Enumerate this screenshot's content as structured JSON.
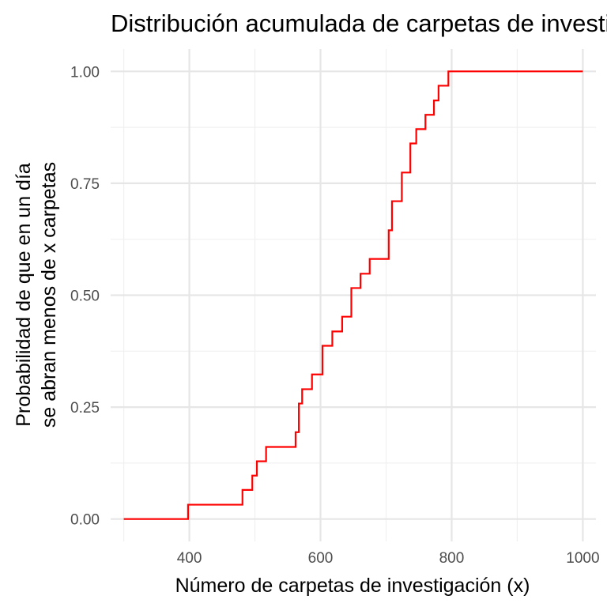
{
  "chart_data": {
    "type": "line",
    "subtype": "step",
    "title": "Distribución acumulada de carpetas de investigación",
    "xlabel": "Número de carpetas de investigación (x)",
    "ylabel_lines": [
      "Probabilidad de que en un día",
      "se abran menos de x carpetas"
    ],
    "xlim": [
      280,
      1020
    ],
    "ylim": [
      -0.05,
      1.05
    ],
    "x_ticks": [
      400,
      600,
      800,
      1000
    ],
    "x_tick_labels": [
      "400",
      "600",
      "800",
      "1000"
    ],
    "y_ticks": [
      0,
      0.25,
      0.5,
      0.75,
      1.0
    ],
    "y_tick_labels": [
      "0.00",
      "0.25",
      "0.50",
      "0.75",
      "1.00"
    ],
    "x_minor": [
      300,
      500,
      700,
      900
    ],
    "y_minor": [
      0.125,
      0.375,
      0.625,
      0.875
    ],
    "grid": true,
    "series": [
      {
        "color": "#ff0000",
        "x": [
          300,
          398,
          481,
          496,
          503,
          517,
          562,
          567,
          572,
          587,
          603,
          618,
          633,
          647,
          661,
          675,
          704,
          709,
          724,
          737,
          746,
          760,
          773,
          780,
          795,
          1000
        ],
        "y": [
          0,
          0.032,
          0.065,
          0.097,
          0.129,
          0.161,
          0.194,
          0.258,
          0.29,
          0.323,
          0.387,
          0.419,
          0.452,
          0.516,
          0.548,
          0.581,
          0.645,
          0.71,
          0.774,
          0.839,
          0.871,
          0.903,
          0.935,
          0.968,
          1.0,
          1.0
        ]
      }
    ]
  }
}
